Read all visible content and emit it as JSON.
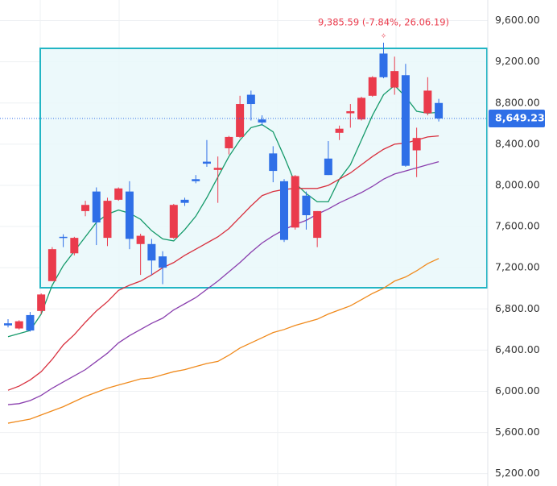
{
  "chart_data": {
    "type": "candlestick",
    "categories": [
      null,
      null,
      null,
      null,
      null,
      null,
      null,
      null,
      null,
      null,
      null,
      null,
      null,
      null,
      null,
      null,
      null,
      null,
      null,
      null,
      null,
      null,
      null,
      null,
      null,
      null,
      null,
      null,
      null,
      null,
      null,
      null,
      null,
      null,
      null,
      null,
      null,
      null,
      null,
      null
    ],
    "open": [
      6660,
      6610,
      6740,
      6780,
      7070,
      7500,
      7340,
      7750,
      7940,
      7490,
      7860,
      7940,
      7430,
      7430,
      7310,
      7490,
      7860,
      8060,
      8230,
      8150,
      8360,
      8470,
      8880,
      8640,
      8310,
      8040,
      7590,
      7900,
      7490,
      8260,
      8510,
      8700,
      8640,
      8870,
      9280,
      8950,
      9070,
      8340,
      8700,
      8800
    ],
    "high": [
      6700,
      6690,
      6770,
      6950,
      7400,
      7525,
      7500,
      7850,
      7980,
      7880,
      7980,
      8040,
      7530,
      7480,
      7360,
      7820,
      7880,
      8100,
      8440,
      8280,
      8480,
      8870,
      8920,
      8680,
      8380,
      8060,
      8100,
      7940,
      7750,
      8430,
      8580,
      8790,
      8860,
      9060,
      9385.59,
      9250,
      9180,
      8560,
      9050,
      8840
    ],
    "low": [
      6620,
      6600,
      6580,
      6750,
      7070,
      7400,
      7320,
      7700,
      7420,
      7410,
      7850,
      7380,
      7130,
      7130,
      7040,
      7480,
      7800,
      8020,
      8180,
      7830,
      8300,
      8460,
      8630,
      8580,
      8030,
      7450,
      7570,
      7570,
      7400,
      8100,
      8440,
      8560,
      8630,
      8860,
      9040,
      8880,
      8180,
      8080,
      8680,
      8620
    ],
    "close": [
      6640,
      6680,
      6590,
      6940,
      7380,
      7490,
      7490,
      7810,
      7640,
      7850,
      7970,
      7480,
      7510,
      7270,
      7200,
      7810,
      7830,
      8040,
      8210,
      8170,
      8470,
      8790,
      8790,
      8610,
      8140,
      7470,
      8090,
      7710,
      7750,
      8100,
      8550,
      8720,
      8850,
      9050,
      9050,
      9110,
      8190,
      8460,
      8920,
      8649.23
    ],
    "up_color": "#ea3b4c",
    "down_color": "#2f6fe7",
    "moving_averages": [
      {
        "color": "#159a6a",
        "values": [
          6530,
          6560,
          6590,
          6750,
          7030,
          7220,
          7360,
          7500,
          7640,
          7720,
          7760,
          7730,
          7670,
          7560,
          7480,
          7460,
          7570,
          7700,
          7880,
          8080,
          8280,
          8440,
          8560,
          8590,
          8520,
          8280,
          8020,
          7920,
          7840,
          7840,
          8060,
          8200,
          8440,
          8680,
          8880,
          8970,
          8860,
          8720,
          8700,
          8710
        ]
      },
      {
        "color": "#d8303e",
        "values": [
          6010,
          6050,
          6110,
          6190,
          6310,
          6450,
          6550,
          6670,
          6780,
          6870,
          6980,
          7030,
          7070,
          7130,
          7200,
          7250,
          7320,
          7380,
          7440,
          7500,
          7580,
          7690,
          7800,
          7900,
          7940,
          7960,
          7970,
          7970,
          7970,
          8000,
          8060,
          8120,
          8200,
          8280,
          8350,
          8400,
          8410,
          8440,
          8470,
          8480
        ]
      },
      {
        "color": "#8a3fae",
        "values": [
          5870,
          5880,
          5910,
          5960,
          6030,
          6090,
          6150,
          6210,
          6290,
          6370,
          6470,
          6540,
          6600,
          6660,
          6710,
          6790,
          6850,
          6910,
          6990,
          7070,
          7160,
          7250,
          7350,
          7440,
          7510,
          7570,
          7620,
          7660,
          7720,
          7770,
          7830,
          7880,
          7930,
          7990,
          8060,
          8110,
          8140,
          8170,
          8200,
          8230
        ]
      },
      {
        "color": "#f08a1c",
        "values": [
          5690,
          5710,
          5730,
          5770,
          5810,
          5850,
          5900,
          5950,
          5990,
          6030,
          6060,
          6090,
          6120,
          6130,
          6160,
          6190,
          6210,
          6240,
          6270,
          6290,
          6350,
          6420,
          6470,
          6520,
          6570,
          6600,
          6640,
          6670,
          6700,
          6750,
          6790,
          6830,
          6890,
          6950,
          7000,
          7070,
          7110,
          7170,
          7240,
          7290
        ]
      }
    ],
    "annotation": "9,385.59 (-7.84%, 26.06.19)",
    "last_price": {
      "value": 8649.23,
      "label": "8,649.23"
    },
    "ylim": [
      5080,
      9800
    ],
    "yticks": [
      {
        "value": 5200,
        "label": "5,200.00"
      },
      {
        "value": 5600,
        "label": "5,600.00"
      },
      {
        "value": 6000,
        "label": "6,000.00"
      },
      {
        "value": 6400,
        "label": "6,400.00"
      },
      {
        "value": 6800,
        "label": "6,800.00"
      },
      {
        "value": 7200,
        "label": "7,200.00"
      },
      {
        "value": 7600,
        "label": "7,600.00"
      },
      {
        "value": 8000,
        "label": "8,000.00"
      },
      {
        "value": 8400,
        "label": "8,400.00"
      },
      {
        "value": 8800,
        "label": "8,800.00"
      },
      {
        "value": 9200,
        "label": "9,200.00"
      },
      {
        "value": 9600,
        "label": "9,600.00"
      }
    ],
    "grid": true
  }
}
